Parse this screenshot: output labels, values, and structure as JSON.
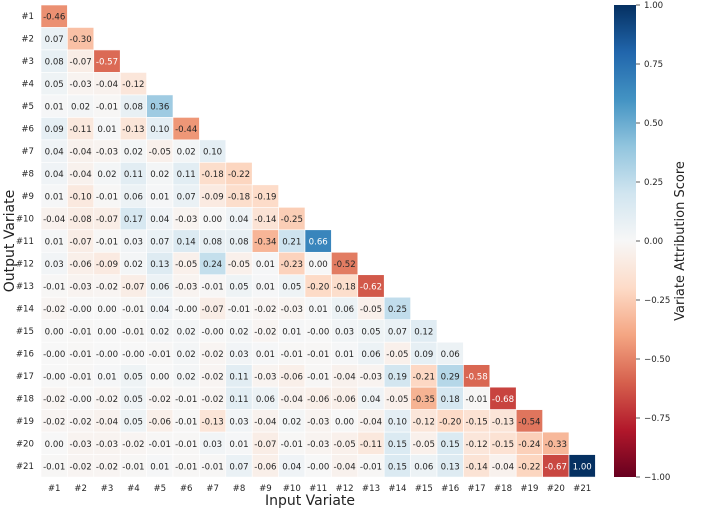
{
  "chart_data": {
    "type": "heatmap",
    "layout": "lower-triangular",
    "xlabel": "Input Variate",
    "ylabel": "Output Variate",
    "colorbar_label": "Variate Attribution Score",
    "row_labels": [
      "#1",
      "#2",
      "#3",
      "#4",
      "#5",
      "#6",
      "#7",
      "#8",
      "#9",
      "#10",
      "#11",
      "#12",
      "#13",
      "#14",
      "#15",
      "#16",
      "#17",
      "#18",
      "#19",
      "#20",
      "#21"
    ],
    "col_labels": [
      "#1",
      "#2",
      "#3",
      "#4",
      "#5",
      "#6",
      "#7",
      "#8",
      "#9",
      "#10",
      "#11",
      "#12",
      "#13",
      "#14",
      "#15",
      "#16",
      "#17",
      "#18",
      "#19",
      "#20",
      "#21"
    ],
    "cells": [
      [
        "-0.46"
      ],
      [
        "0.07",
        "-0.30"
      ],
      [
        "0.08",
        "-0.07",
        "-0.57"
      ],
      [
        "0.05",
        "-0.03",
        "-0.04",
        "-0.12"
      ],
      [
        "0.01",
        "0.02",
        "-0.01",
        "0.08",
        "0.36"
      ],
      [
        "0.09",
        "-0.11",
        "0.01",
        "-0.13",
        "0.10",
        "-0.44"
      ],
      [
        "0.04",
        "-0.04",
        "-0.03",
        "0.02",
        "-0.05",
        "0.02",
        "0.10"
      ],
      [
        "0.04",
        "-0.04",
        "0.02",
        "0.11",
        "0.02",
        "0.11",
        "-0.18",
        "-0.22"
      ],
      [
        "0.01",
        "-0.10",
        "-0.01",
        "0.06",
        "0.01",
        "0.07",
        "-0.09",
        "-0.18",
        "-0.19"
      ],
      [
        "-0.04",
        "-0.08",
        "-0.07",
        "0.17",
        "0.04",
        "-0.03",
        "0.00",
        "0.04",
        "-0.14",
        "-0.25"
      ],
      [
        "0.01",
        "-0.07",
        "-0.01",
        "0.03",
        "0.07",
        "0.14",
        "0.08",
        "0.08",
        "-0.34",
        "0.21",
        "0.66"
      ],
      [
        "0.03",
        "-0.06",
        "-0.09",
        "0.02",
        "0.13",
        "-0.05",
        "0.24",
        "-0.05",
        "0.01",
        "-0.23",
        "0.00",
        "-0.52"
      ],
      [
        "-0.01",
        "-0.03",
        "-0.02",
        "-0.07",
        "0.06",
        "-0.03",
        "-0.01",
        "0.05",
        "0.01",
        "0.05",
        "-0.20",
        "-0.18",
        "-0.62"
      ],
      [
        "-0.02",
        "-0.00",
        "0.00",
        "-0.01",
        "0.04",
        "-0.00",
        "-0.07",
        "-0.01",
        "-0.02",
        "-0.03",
        "0.01",
        "0.06",
        "-0.05",
        "0.25"
      ],
      [
        "0.00",
        "-0.01",
        "0.00",
        "-0.01",
        "0.02",
        "0.02",
        "-0.00",
        "0.02",
        "-0.02",
        "0.01",
        "-0.00",
        "0.03",
        "0.05",
        "0.07",
        "0.12"
      ],
      [
        "-0.00",
        "-0.01",
        "-0.00",
        "-0.00",
        "-0.01",
        "0.02",
        "-0.02",
        "0.03",
        "0.01",
        "-0.01",
        "-0.01",
        "0.01",
        "0.06",
        "-0.05",
        "0.09",
        "0.06"
      ],
      [
        "-0.00",
        "-0.01",
        "0.01",
        "0.05",
        "0.00",
        "0.02",
        "-0.02",
        "0.11",
        "-0.03",
        "-0.06",
        "-0.01",
        "-0.04",
        "-0.03",
        "0.19",
        "-0.21",
        "0.29",
        "-0.58"
      ],
      [
        "-0.02",
        "-0.00",
        "-0.02",
        "0.05",
        "-0.02",
        "-0.01",
        "-0.02",
        "0.11",
        "0.06",
        "-0.04",
        "-0.06",
        "-0.06",
        "0.04",
        "-0.05",
        "-0.35",
        "0.18",
        "-0.01",
        "-0.68"
      ],
      [
        "-0.02",
        "-0.02",
        "-0.04",
        "0.05",
        "-0.06",
        "-0.01",
        "-0.13",
        "0.03",
        "-0.04",
        "0.02",
        "-0.03",
        "0.00",
        "-0.04",
        "0.10",
        "-0.12",
        "-0.20",
        "-0.15",
        "-0.13",
        "-0.54"
      ],
      [
        "0.00",
        "-0.03",
        "-0.03",
        "-0.02",
        "-0.01",
        "-0.01",
        "0.03",
        "0.01",
        "-0.07",
        "-0.01",
        "-0.03",
        "-0.05",
        "-0.11",
        "0.15",
        "-0.05",
        "0.15",
        "-0.12",
        "-0.15",
        "-0.24",
        "-0.33"
      ],
      [
        "-0.01",
        "-0.02",
        "-0.02",
        "-0.01",
        "0.01",
        "-0.01",
        "-0.01",
        "0.07",
        "-0.06",
        "0.04",
        "-0.00",
        "-0.04",
        "-0.01",
        "0.15",
        "0.06",
        "0.13",
        "-0.14",
        "-0.04",
        "-0.22",
        "-0.67",
        "1.00"
      ]
    ],
    "vmin": -1.0,
    "vmax": 1.0,
    "colorbar_ticks": [
      "1.00",
      "0.75",
      "0.50",
      "0.25",
      "0.00",
      "−0.25",
      "−0.50",
      "−0.75",
      "−1.00"
    ],
    "colormap": "RdBu",
    "colormap_stops": [
      "#67001f",
      "#b2182b",
      "#d6604d",
      "#f4a582",
      "#fddbc7",
      "#f7f7f7",
      "#d1e5f0",
      "#92c5de",
      "#4393c3",
      "#2166ac",
      "#053061"
    ]
  }
}
